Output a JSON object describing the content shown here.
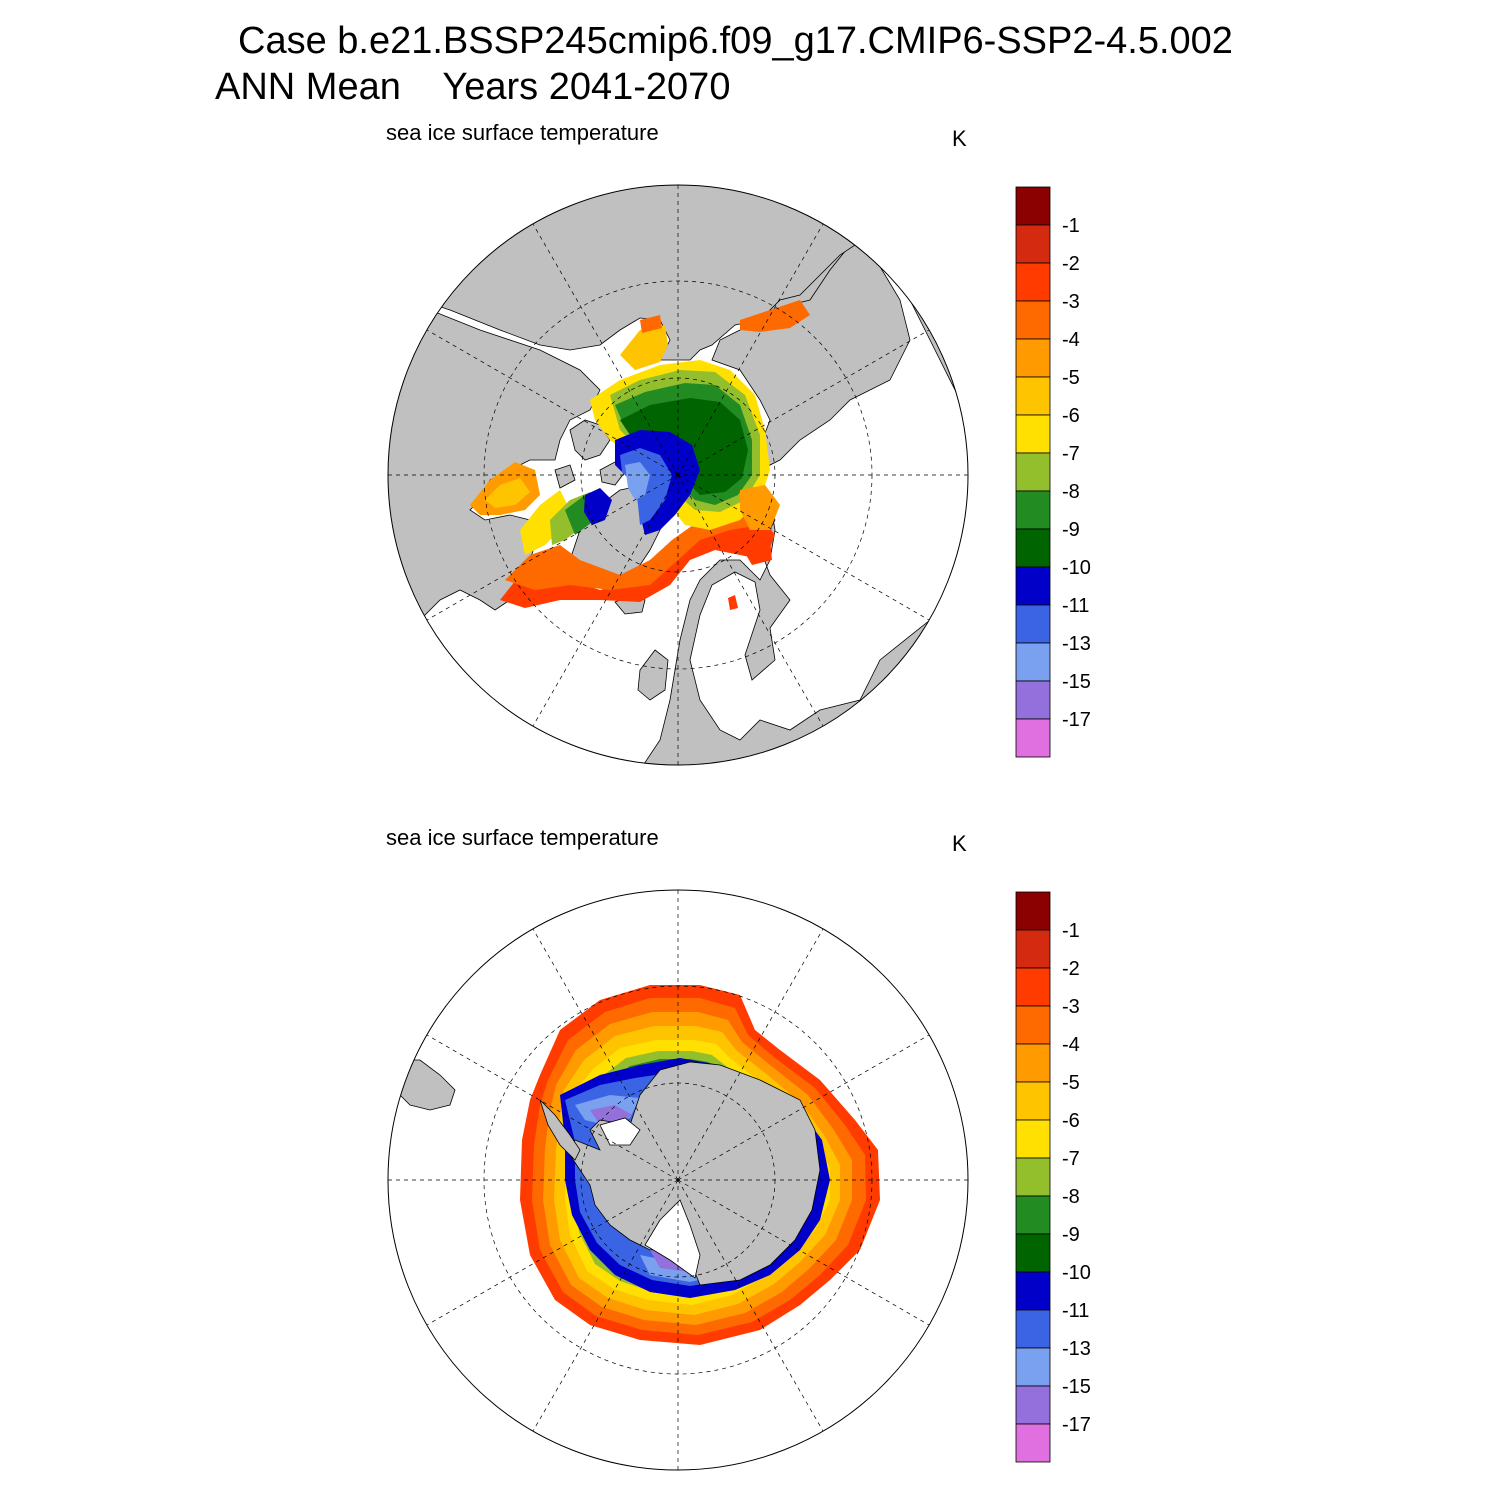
{
  "header": {
    "case_line": "Case b.e21.BSSP245cmip6.f09_g17.CMIP6-SSP2-4.5.002",
    "period_line": "ANN Mean    Years 2041-2070"
  },
  "panels": [
    {
      "id": "north",
      "variable_label": "sea ice surface temperature",
      "units": "K",
      "hemisphere": "Arctic (north polar stereographic)"
    },
    {
      "id": "south",
      "variable_label": "sea ice surface temperature",
      "units": "K",
      "hemisphere": "Antarctic (south polar stereographic)"
    }
  ],
  "colorbar": {
    "labels": [
      "-1",
      "-2",
      "-3",
      "-4",
      "-5",
      "-6",
      "-7",
      "-8",
      "-9",
      "-10",
      "-11",
      "-13",
      "-15",
      "-17"
    ],
    "colors": [
      "#8b0000",
      "#d42a10",
      "#ff3b00",
      "#ff6a00",
      "#ff9a00",
      "#ffc400",
      "#ffe000",
      "#94bf2d",
      "#228b22",
      "#006400",
      "#0000c8",
      "#3a64e4",
      "#7aa0f0",
      "#9370db",
      "#e070e0"
    ]
  },
  "map_style": {
    "land_color": "#c0c0c0",
    "ocean_color": "#ffffff",
    "coast_color": "#000000"
  }
}
